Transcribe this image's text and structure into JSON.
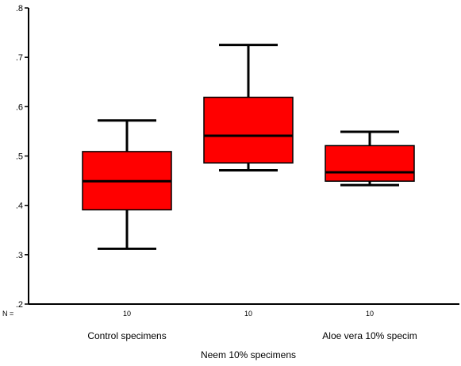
{
  "chart_data": {
    "type": "boxplot",
    "ylim": [
      0.2,
      0.8
    ],
    "y_ticks": [
      ".2",
      ".3",
      ".4",
      ".5",
      ".6",
      ".7",
      ".8"
    ],
    "y_tick_values": [
      0.2,
      0.3,
      0.4,
      0.5,
      0.6,
      0.7,
      0.8
    ],
    "n_prefix": "N =",
    "box_color": "#ff0000",
    "groups": [
      {
        "label": "Control specimens",
        "n": "10",
        "min": 0.312,
        "q1": 0.391,
        "median": 0.449,
        "q3": 0.509,
        "max": 0.572,
        "label_row": 1
      },
      {
        "label": "Neem 10% specimens",
        "n": "10",
        "min": 0.471,
        "q1": 0.486,
        "median": 0.541,
        "q3": 0.619,
        "max": 0.725,
        "label_row": 2
      },
      {
        "label": "Aloe vera 10% specim",
        "n": "10",
        "min": 0.441,
        "q1": 0.449,
        "median": 0.467,
        "q3": 0.521,
        "max": 0.549,
        "label_row": 1
      }
    ],
    "grid": false,
    "legend": "none"
  }
}
